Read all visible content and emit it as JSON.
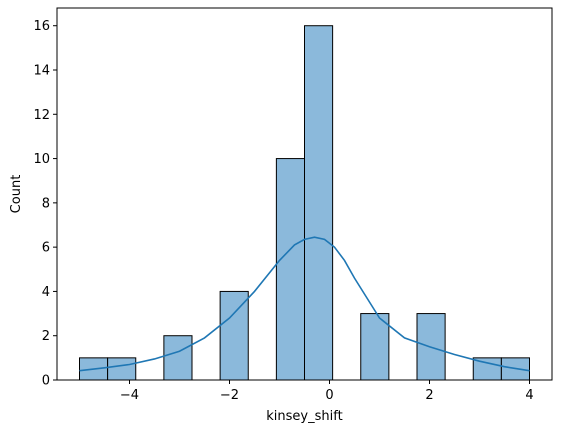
{
  "chart_data": {
    "type": "bar",
    "subtype": "histogram-with-kde",
    "title": "",
    "xlabel": "kinsey_shift",
    "ylabel": "Count",
    "xlim": [
      -5.45,
      4.45
    ],
    "ylim": [
      0,
      16.8
    ],
    "xticks": [
      -4,
      -2,
      0,
      2,
      4
    ],
    "xtick_labels": [
      "−4",
      "−2",
      "0",
      "2",
      "4"
    ],
    "yticks": [
      0,
      2,
      4,
      6,
      8,
      10,
      12,
      14,
      16
    ],
    "ytick_labels": [
      "0",
      "2",
      "4",
      "6",
      "8",
      "10",
      "12",
      "14",
      "16"
    ],
    "grid": false,
    "legend": false,
    "bin_width": 0.5625,
    "bins": [
      {
        "x0": -5.0,
        "x1": -4.4375,
        "count": 1
      },
      {
        "x0": -4.4375,
        "x1": -3.875,
        "count": 1
      },
      {
        "x0": -3.3125,
        "x1": -2.75,
        "count": 2
      },
      {
        "x0": -2.1875,
        "x1": -1.625,
        "count": 4
      },
      {
        "x0": -1.0625,
        "x1": -0.5,
        "count": 10
      },
      {
        "x0": -0.5,
        "x1": 0.0625,
        "count": 16
      },
      {
        "x0": 0.625,
        "x1": 1.1875,
        "count": 3
      },
      {
        "x0": 1.75,
        "x1": 2.3125,
        "count": 3
      },
      {
        "x0": 2.875,
        "x1": 3.4375,
        "count": 1
      },
      {
        "x0": 3.4375,
        "x1": 4.0,
        "count": 1
      }
    ],
    "kde": {
      "x": [
        -5.0,
        -4.5,
        -4.0,
        -3.5,
        -3.0,
        -2.5,
        -2.0,
        -1.5,
        -1.0,
        -0.7,
        -0.5,
        -0.3,
        -0.1,
        0.1,
        0.3,
        0.5,
        1.0,
        1.5,
        2.0,
        2.5,
        3.0,
        3.5,
        4.0
      ],
      "y": [
        0.42,
        0.55,
        0.7,
        0.95,
        1.3,
        1.9,
        2.8,
        4.0,
        5.4,
        6.1,
        6.35,
        6.45,
        6.35,
        6.0,
        5.4,
        4.6,
        2.8,
        1.9,
        1.5,
        1.15,
        0.85,
        0.6,
        0.42
      ]
    },
    "colors": {
      "bar_fill": "#8bb9db",
      "bar_edge": "#000000",
      "kde_line": "#1f77b4",
      "axis": "#000000"
    }
  }
}
